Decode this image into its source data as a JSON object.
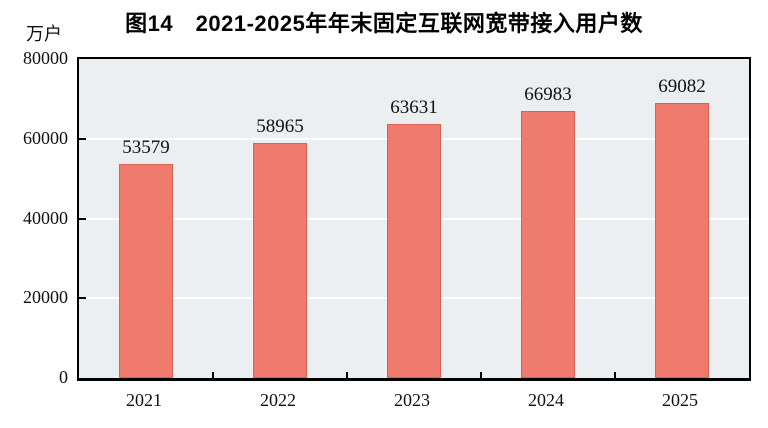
{
  "title": "图14　2021-2025年年末固定互联网宽带接入用户数",
  "unit_label": "万户",
  "chart_data": {
    "type": "bar",
    "title": "图14　2021-2025年年末固定互联网宽带接入用户数",
    "categories": [
      "2021",
      "2022",
      "2023",
      "2024",
      "2025"
    ],
    "values": [
      53579,
      58965,
      63631,
      66983,
      69082
    ],
    "xlabel": "",
    "ylabel": "万户",
    "ylim": [
      0,
      80000
    ],
    "yticks": [
      0,
      20000,
      40000,
      60000,
      80000
    ],
    "grid": true,
    "legend_position": "none",
    "colors": {
      "bar_fill": "#EE7B6D",
      "bar_border": "#DD5F53",
      "plot_background": "#EBEFF2",
      "gridline": "#FFFFFF",
      "axis": "#000000",
      "text": "#111111"
    }
  }
}
